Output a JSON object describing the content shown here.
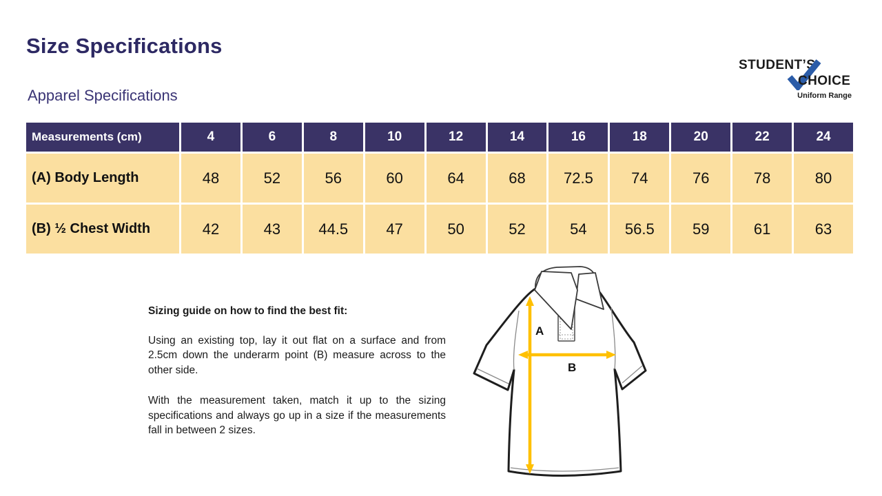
{
  "page": {
    "title": "Size Specifications",
    "subtitle": "Apparel Specifications"
  },
  "logo": {
    "line1": "STUDENT’S",
    "line2": "CHOICE",
    "tagline": "Uniform Range"
  },
  "table": {
    "header": [
      "Measurements (cm)",
      "4",
      "6",
      "8",
      "10",
      "12",
      "14",
      "16",
      "18",
      "20",
      "22",
      "24"
    ],
    "rows": [
      {
        "label": "(A) Body Length",
        "values": [
          "48",
          "52",
          "56",
          "60",
          "64",
          "68",
          "72.5",
          "74",
          "76",
          "78",
          "80"
        ]
      },
      {
        "label": "(B) ½ Chest Width",
        "values": [
          "42",
          "43",
          "44.5",
          "47",
          "50",
          "52",
          "54",
          "56.5",
          "59",
          "61",
          "63"
        ]
      }
    ]
  },
  "guide": {
    "heading": "Sizing guide on how to find the best fit:",
    "para1": "Using an existing top, lay it out flat on a surface and from 2.5cm down the underarm point (B) measure across to the other side.",
    "para2": "With the measurement taken, match it up to the sizing specifications and always go up in a size if the measurements fall in between 2 sizes."
  },
  "diagram": {
    "label_a": "A",
    "label_b": "B"
  },
  "colors": {
    "title": "#2D2963",
    "subtitle": "#3A3475",
    "header_bg": "#3A3366",
    "cell_bg": "#FBDFA0",
    "arrow": "#FFC000",
    "check": "#2B5CA8",
    "text": "#1A1A1A"
  }
}
